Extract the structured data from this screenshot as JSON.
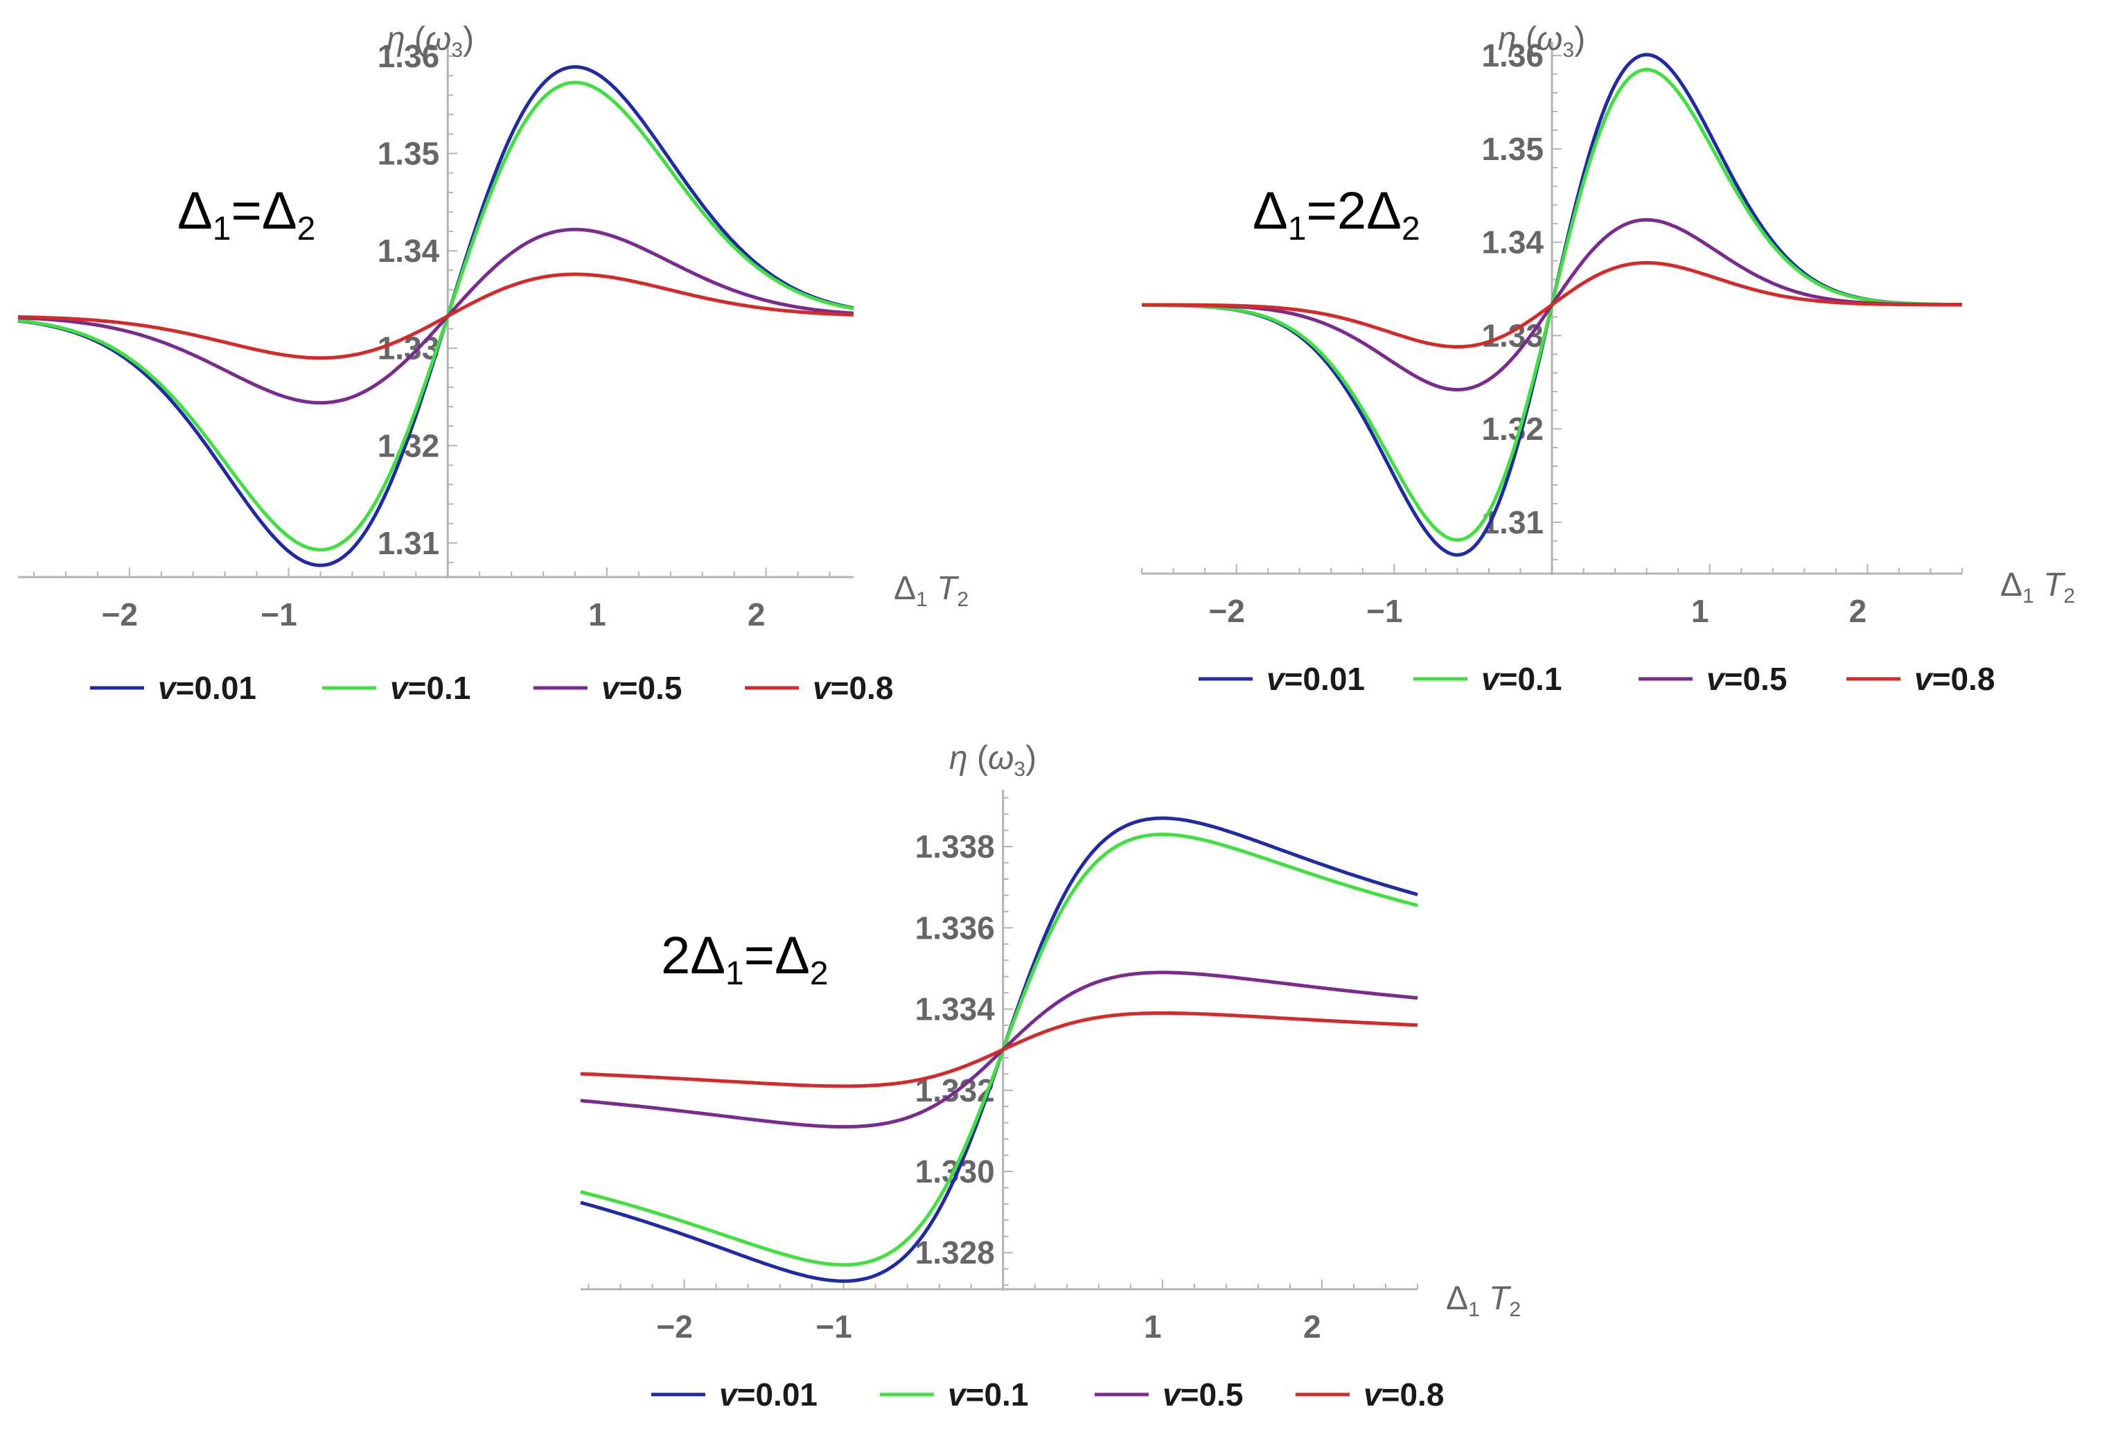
{
  "figure_title": "",
  "chart_data": [
    {
      "type": "line",
      "annotation": {
        "prefix": "",
        "delta1": "Δ",
        "sub1": "1",
        "mid": "=",
        "delta2": "Δ",
        "sub2": "2"
      },
      "xlabel": {
        "delta": "Δ",
        "sub": "1",
        "var": " T",
        "sub2": "2"
      },
      "ylabel": {
        "eta": "η",
        "omega": "ω",
        "sub": "3"
      },
      "xlim": [
        -2.7,
        2.55
      ],
      "ylim": [
        1.3065,
        1.3615
      ],
      "xticks": [
        -2,
        -1,
        1,
        2
      ],
      "xtick_labels": [
        "−2",
        "−1",
        "1",
        "2"
      ],
      "yticks": [
        1.31,
        1.32,
        1.33,
        1.34,
        1.35,
        1.36
      ],
      "ytick_labels": [
        "1.31",
        "1.32",
        "1.33",
        "1.34",
        "1.35",
        "1.36"
      ],
      "y_center": 1.3333,
      "series": [
        {
          "name": "v=0.01",
          "var": "v",
          "value": "=0.01",
          "color": "#1f2aa8",
          "amplitude": 0.0256,
          "x_peak": 0.8,
          "tail": "gauss"
        },
        {
          "name": "v=0.1",
          "var": "v",
          "value": "=0.1",
          "color": "#3fe03f",
          "amplitude": 0.024,
          "x_peak": 0.8,
          "tail": "gauss"
        },
        {
          "name": "v=0.5",
          "var": "v",
          "value": "=0.5",
          "color": "#7b2a8f",
          "amplitude": 0.0089,
          "x_peak": 0.8,
          "tail": "gauss"
        },
        {
          "name": "v=0.8",
          "var": "v",
          "value": "=0.8",
          "color": "#d42a2a",
          "amplitude": 0.0043,
          "x_peak": 0.8,
          "tail": "gauss"
        }
      ]
    },
    {
      "type": "line",
      "annotation": {
        "prefix": "",
        "delta1": "Δ",
        "sub1": "1",
        "mid": "=2",
        "delta2": "Δ",
        "sub2": "2"
      },
      "xlabel": {
        "delta": "Δ",
        "sub": "1",
        "var": " T",
        "sub2": "2"
      },
      "ylabel": {
        "eta": "η",
        "omega": "ω",
        "sub": "3"
      },
      "xlim": [
        -2.6,
        2.6
      ],
      "ylim": [
        1.3045,
        1.3615
      ],
      "xticks": [
        -2,
        -1,
        1,
        2
      ],
      "xtick_labels": [
        "−2",
        "−1",
        "1",
        "2"
      ],
      "yticks": [
        1.31,
        1.32,
        1.33,
        1.34,
        1.35,
        1.36
      ],
      "ytick_labels": [
        "1.31",
        "1.32",
        "1.33",
        "1.34",
        "1.35",
        "1.36"
      ],
      "y_center": 1.3333,
      "series": [
        {
          "name": "v=0.01",
          "var": "v",
          "value": "=0.01",
          "color": "#1f2aa8",
          "amplitude": 0.0268,
          "x_peak": 0.6,
          "tail": "gauss"
        },
        {
          "name": "v=0.1",
          "var": "v",
          "value": "=0.1",
          "color": "#3fe03f",
          "amplitude": 0.0252,
          "x_peak": 0.6,
          "tail": "gauss"
        },
        {
          "name": "v=0.5",
          "var": "v",
          "value": "=0.5",
          "color": "#7b2a8f",
          "amplitude": 0.0091,
          "x_peak": 0.6,
          "tail": "gauss"
        },
        {
          "name": "v=0.8",
          "var": "v",
          "value": "=0.8",
          "color": "#d42a2a",
          "amplitude": 0.0045,
          "x_peak": 0.6,
          "tail": "gauss"
        }
      ]
    },
    {
      "type": "line",
      "annotation": {
        "prefix": "2",
        "delta1": "Δ",
        "sub1": "1",
        "mid": "=",
        "delta2": "Δ",
        "sub2": "2"
      },
      "xlabel": {
        "delta": "Δ",
        "sub": "1",
        "var": " T",
        "sub2": "2"
      },
      "ylabel": {
        "eta": "η",
        "omega": "ω",
        "sub": "3"
      },
      "xlim": [
        -2.65,
        2.6
      ],
      "ylim": [
        1.3271,
        1.3394
      ],
      "xticks": [
        -2,
        -1,
        1,
        2
      ],
      "xtick_labels": [
        "−2",
        "−1",
        "1",
        "2"
      ],
      "yticks": [
        1.328,
        1.33,
        1.332,
        1.334,
        1.336,
        1.338
      ],
      "ytick_labels": [
        "1.328",
        "1.330",
        "1.332",
        "1.334",
        "1.336",
        "1.338"
      ],
      "y_center": 1.333,
      "series": [
        {
          "name": "v=0.01",
          "var": "v",
          "value": "=0.01",
          "color": "#1f2aa8",
          "amplitude": 0.0057,
          "x_peak": 1.0,
          "tail": "lorentz"
        },
        {
          "name": "v=0.1",
          "var": "v",
          "value": "=0.1",
          "color": "#3fe03f",
          "amplitude": 0.0053,
          "x_peak": 1.0,
          "tail": "lorentz"
        },
        {
          "name": "v=0.5",
          "var": "v",
          "value": "=0.5",
          "color": "#7b2a8f",
          "amplitude": 0.0019,
          "x_peak": 1.0,
          "tail": "lorentz"
        },
        {
          "name": "v=0.8",
          "var": "v",
          "value": "=0.8",
          "color": "#d42a2a",
          "amplitude": 0.0009,
          "x_peak": 1.0,
          "tail": "lorentz"
        }
      ]
    }
  ]
}
